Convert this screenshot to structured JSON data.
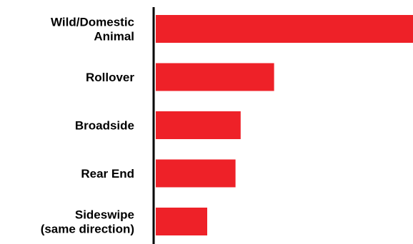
{
  "chart_data": {
    "type": "bar",
    "orientation": "horizontal",
    "categories": [
      [
        "Wild/Domestic",
        "Animal"
      ],
      [
        "Rollover"
      ],
      [
        "Broadside"
      ],
      [
        "Rear End"
      ],
      [
        "Sideswipe",
        "(same direction)"
      ]
    ],
    "values": [
      100,
      46,
      33,
      31,
      20
    ],
    "xlim": [
      0,
      100
    ],
    "title": "",
    "xlabel": "",
    "ylabel": "",
    "grid": false,
    "legend": "none",
    "bar_color": "#ee2128",
    "axis_color": "#000000"
  }
}
